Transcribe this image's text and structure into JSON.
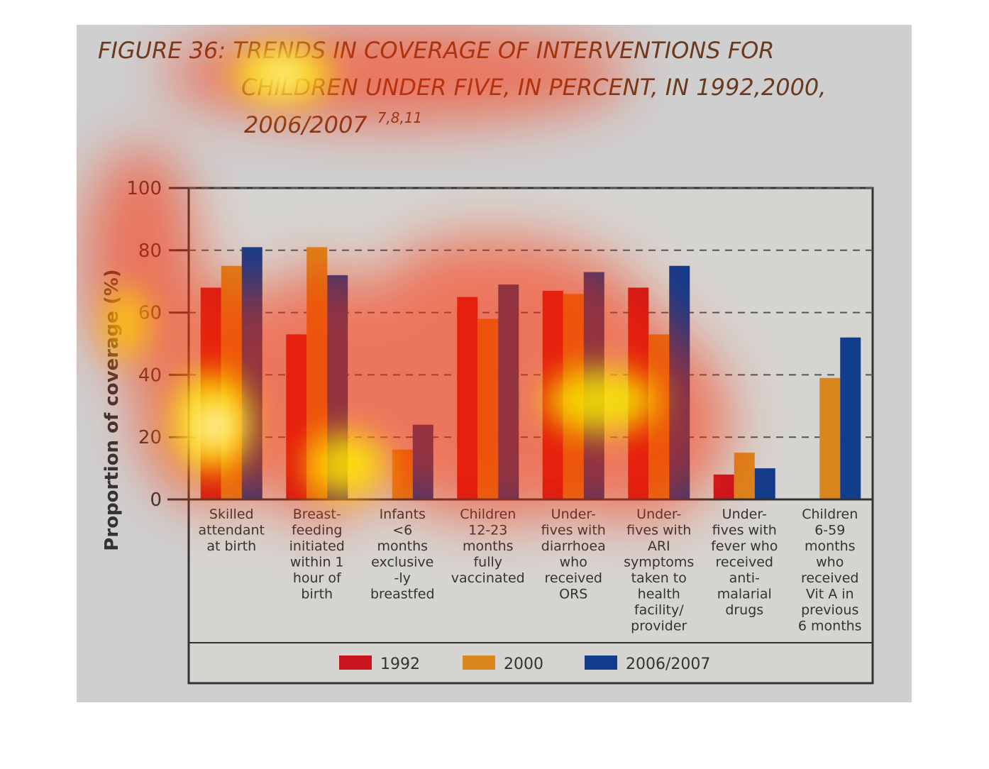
{
  "figure_title": {
    "line1": "FIGURE 36: TRENDS IN COVERAGE OF INTERVENTIONS FOR",
    "line2": "CHILDREN UNDER FIVE, IN PERCENT, IN 1992,2000,",
    "line3": "2006/2007",
    "superscript": "7,8,11"
  },
  "colors": {
    "1992": "#c8141e",
    "2000": "#d9861c",
    "2006/2007": "#123c8c",
    "panel": "#cfcfcf",
    "plot_bg": "#d6d4d0"
  },
  "chart_data": {
    "type": "bar",
    "ylabel": "Proportion of coverage (%)",
    "ylim": [
      0,
      100
    ],
    "yticks": [
      0,
      20,
      40,
      60,
      80,
      100
    ],
    "grid": true,
    "legend_position": "bottom",
    "categories": [
      [
        "Skilled",
        "attendant",
        "at birth"
      ],
      [
        "Breast-",
        "feeding",
        "initiated",
        "within 1",
        "hour of",
        "birth"
      ],
      [
        "Infants",
        "<6",
        "months",
        "exclusive",
        "-ly",
        "breastfed"
      ],
      [
        "Children",
        "12-23",
        "months",
        "fully",
        "vaccinated"
      ],
      [
        "Under-",
        "fives with",
        "diarrhoea",
        "who",
        "received",
        "ORS"
      ],
      [
        "Under-",
        "fives with",
        "ARI",
        "symptoms",
        "taken to",
        "health",
        "facility/",
        "provider"
      ],
      [
        "Under-",
        "fives with",
        "fever who",
        "received",
        "anti-",
        "malarial",
        "drugs"
      ],
      [
        "Children",
        "6-59",
        "months",
        "who",
        "received",
        "Vit A in",
        "previous",
        "6 months"
      ]
    ],
    "series": [
      {
        "name": "1992",
        "values": [
          68,
          53,
          null,
          65,
          67,
          68,
          8,
          null
        ]
      },
      {
        "name": "2000",
        "values": [
          75,
          81,
          16,
          58,
          66,
          53,
          15,
          39
        ]
      },
      {
        "name": "2006/2007",
        "values": [
          81,
          72,
          24,
          69,
          73,
          75,
          10,
          52
        ]
      }
    ]
  }
}
